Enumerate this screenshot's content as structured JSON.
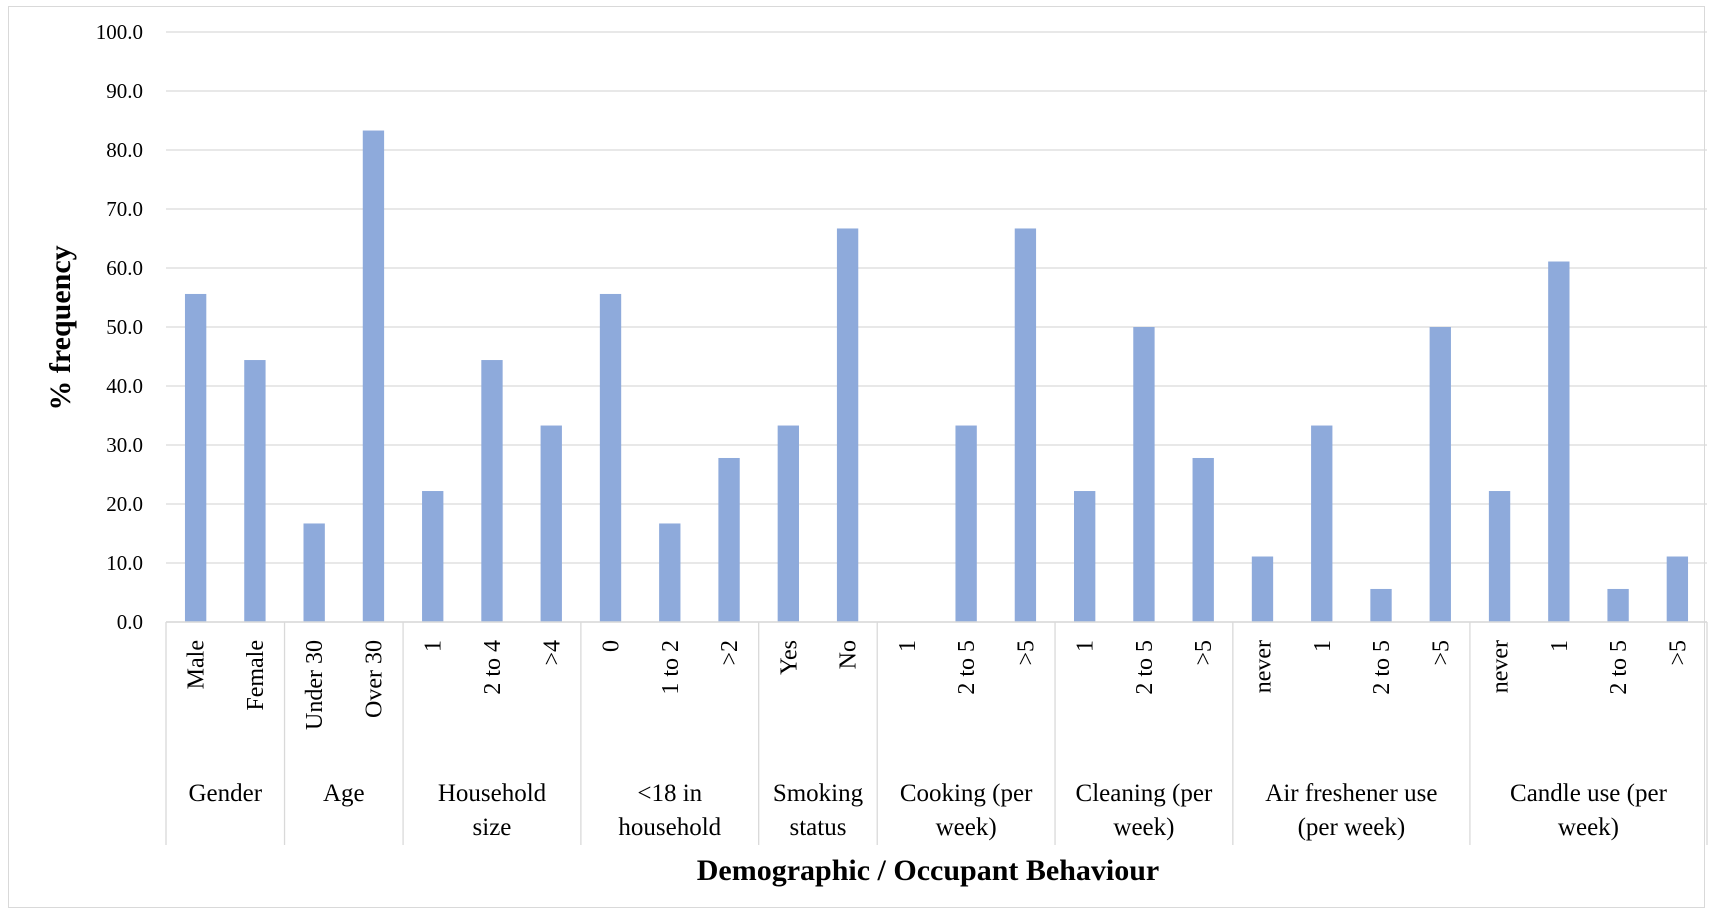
{
  "chart_data": {
    "type": "bar",
    "xlabel": "Demographic / Occupant Behaviour",
    "ylabel": "% frequency",
    "ylim": [
      0,
      100
    ],
    "yticks": [
      "0.0",
      "10.0",
      "20.0",
      "30.0",
      "40.0",
      "50.0",
      "60.0",
      "70.0",
      "80.0",
      "90.0",
      "100.0"
    ],
    "grid": true,
    "bar_color": "#8eaadb",
    "groups": [
      {
        "label_lines": [
          "Gender"
        ],
        "categories": [
          "Male",
          "Female"
        ],
        "values": [
          55.6,
          44.4
        ]
      },
      {
        "label_lines": [
          "Age"
        ],
        "categories": [
          "Under 30",
          "Over 30"
        ],
        "values": [
          16.7,
          83.3
        ]
      },
      {
        "label_lines": [
          "Household",
          "size"
        ],
        "categories": [
          "1",
          "2 to 4",
          ">4"
        ],
        "values": [
          22.2,
          44.4,
          33.3
        ]
      },
      {
        "label_lines": [
          "<18 in",
          "household"
        ],
        "categories": [
          "0",
          "1 to 2",
          ">2"
        ],
        "values": [
          55.6,
          16.7,
          27.8
        ]
      },
      {
        "label_lines": [
          "Smoking",
          "status"
        ],
        "categories": [
          "Yes",
          "No"
        ],
        "values": [
          33.3,
          66.7
        ]
      },
      {
        "label_lines": [
          "Cooking (per",
          "week)"
        ],
        "categories": [
          "1",
          "2 to 5",
          ">5"
        ],
        "values": [
          0.0,
          33.3,
          66.7
        ]
      },
      {
        "label_lines": [
          "Cleaning (per",
          "week)"
        ],
        "categories": [
          "1",
          "2 to 5",
          ">5"
        ],
        "values": [
          22.2,
          50.0,
          27.8
        ]
      },
      {
        "label_lines": [
          "Air freshener use",
          "(per week)"
        ],
        "categories": [
          "never",
          "1",
          "2 to 5",
          ">5"
        ],
        "values": [
          11.1,
          33.3,
          5.6,
          50.0
        ]
      },
      {
        "label_lines": [
          "Candle use (per",
          "week)"
        ],
        "categories": [
          "never",
          "1",
          "2 to 5",
          ">5"
        ],
        "values": [
          22.2,
          61.1,
          5.6,
          11.1
        ]
      }
    ]
  }
}
